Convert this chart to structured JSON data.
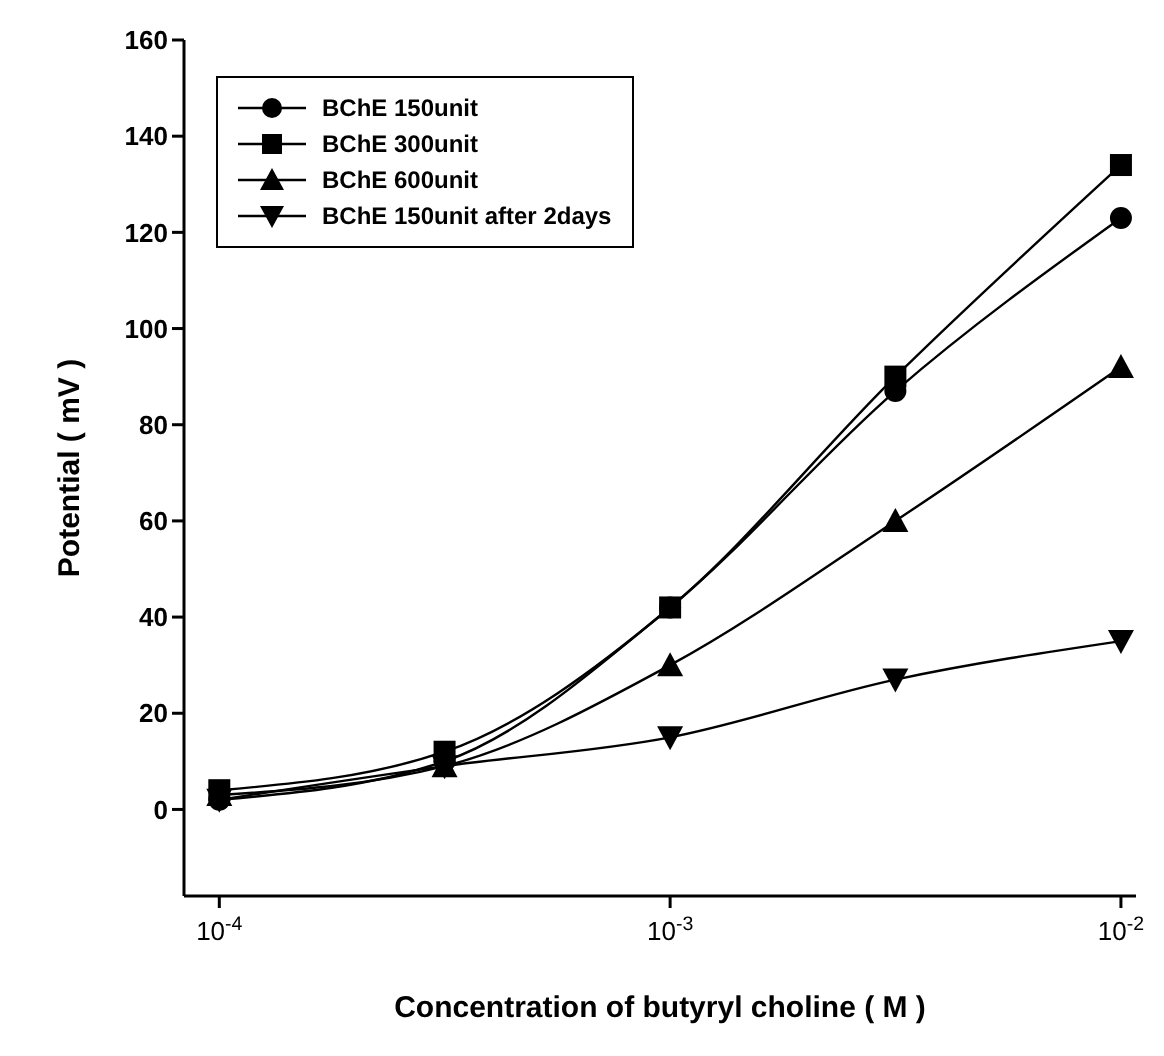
{
  "chart_data": {
    "type": "line",
    "xlabel": "Concentration of butyryl choline ( M )",
    "ylabel": "Potential ( mV )",
    "x": [
      0.0001,
      0.000316,
      0.001,
      0.00316,
      0.01
    ],
    "series": [
      {
        "name": "BChE 150unit",
        "color": "#000000",
        "marker": "circle",
        "values": [
          2,
          10,
          42,
          87,
          123
        ]
      },
      {
        "name": "BChE 300unit",
        "color": "#000000",
        "marker": "square",
        "values": [
          4,
          12,
          42,
          90,
          134
        ]
      },
      {
        "name": "BChE 600unit",
        "color": "#000000",
        "marker": "triangle",
        "values": [
          3,
          9,
          30,
          60,
          92
        ]
      },
      {
        "name": "BChE 150unit after 2days",
        "color": "#000000",
        "marker": "triangle-down",
        "values": [
          2,
          9,
          15,
          27,
          35
        ]
      }
    ],
    "log": "x",
    "xlim": [
      8.35e-05,
      0.0108
    ],
    "xticks": [
      {
        "value": 0.0001,
        "label": "10$^{-4}$"
      },
      {
        "value": 0.001,
        "label": "10$^{-3}$"
      },
      {
        "value": 0.01,
        "label": "10$^{-2}$"
      }
    ],
    "ylim": [
      -18,
      160
    ],
    "yticks": [
      0,
      20,
      40,
      60,
      80,
      100,
      120,
      140,
      160
    ],
    "grid": false,
    "legend": "top left",
    "line_style": "solid"
  }
}
